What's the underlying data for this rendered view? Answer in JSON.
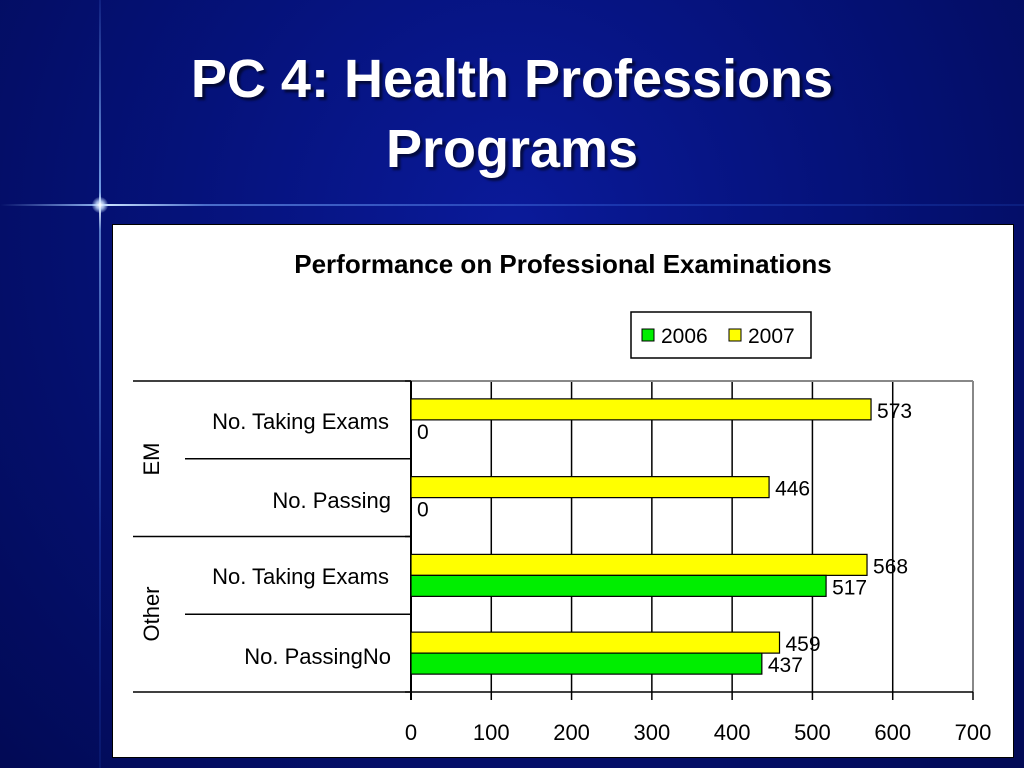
{
  "slide": {
    "title_line1": "PC 4: Health Professions",
    "title_line2": "Programs"
  },
  "chart_data": {
    "type": "bar",
    "orientation": "horizontal",
    "title": "Performance on Professional Examinations",
    "groups": [
      {
        "name": "EM",
        "categories": [
          "No. Taking Exams",
          "No. Passing"
        ]
      },
      {
        "name": "Other",
        "categories": [
          "No. Taking Exams",
          "No. PassingNo"
        ]
      }
    ],
    "categories": [
      "EM No. Taking Exams",
      "EM No. Passing",
      "Other No. Taking Exams",
      "Other No. PassingNo"
    ],
    "series": [
      {
        "name": "2006",
        "color": "#00ee00",
        "values": [
          0,
          0,
          517,
          437
        ]
      },
      {
        "name": "2007",
        "color": "#ffff00",
        "values": [
          573,
          446,
          568,
          459
        ]
      }
    ],
    "xlim": [
      0,
      700
    ],
    "xticks": [
      0,
      100,
      200,
      300,
      400,
      500,
      600,
      700
    ],
    "legend_position": "top-right",
    "grid": true
  }
}
